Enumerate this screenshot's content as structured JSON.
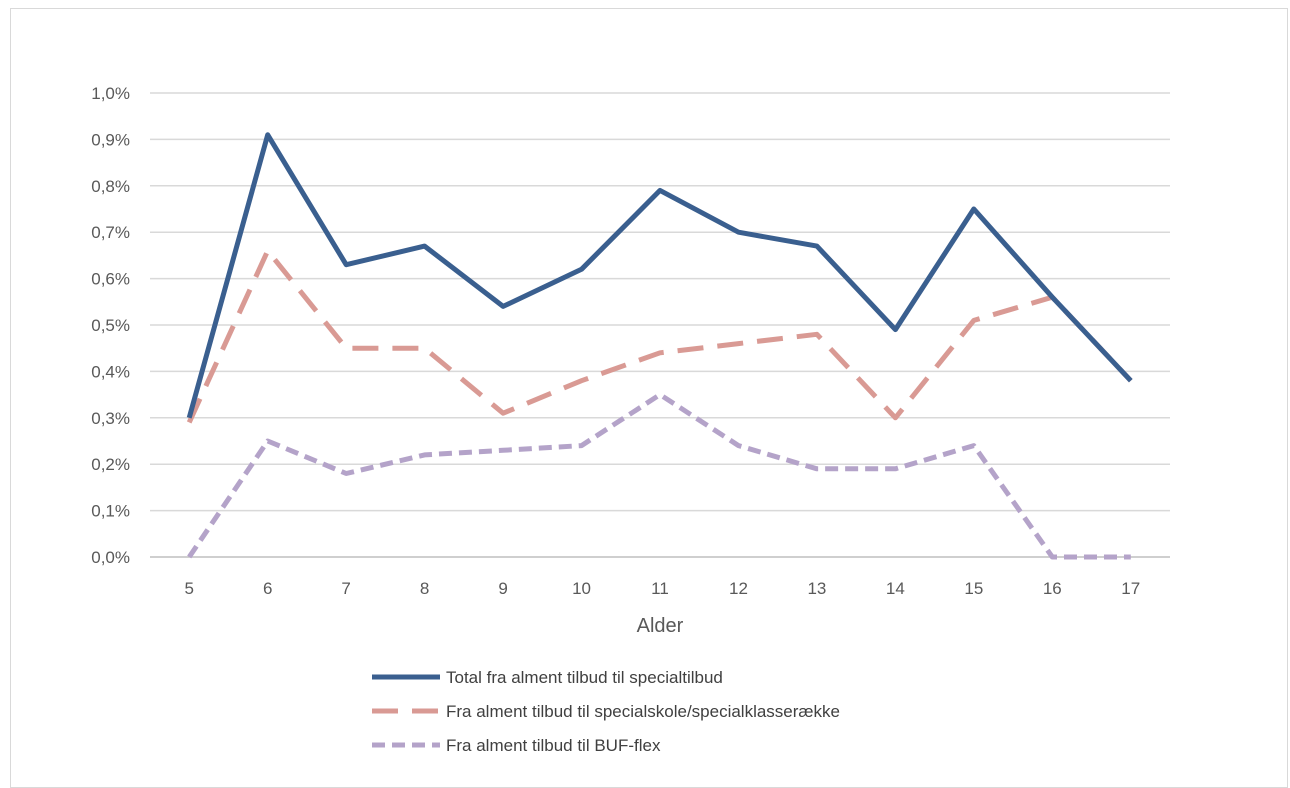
{
  "chart_data": {
    "type": "line",
    "title": "",
    "xlabel": "Alder",
    "ylabel": "",
    "categories": [
      "5",
      "6",
      "7",
      "8",
      "9",
      "10",
      "11",
      "12",
      "13",
      "14",
      "15",
      "16",
      "17"
    ],
    "ylim": [
      0,
      1.0
    ],
    "yticks": [
      "0,0%",
      "0,1%",
      "0,2%",
      "0,3%",
      "0,4%",
      "0,5%",
      "0,6%",
      "0,7%",
      "0,8%",
      "0,9%",
      "1,0%"
    ],
    "y_unit": "%",
    "grid": true,
    "legend_placement": "bottom",
    "series": [
      {
        "name": "Total fra alment tilbud til specialtilbud",
        "color": "#3a5f8f",
        "style": "solid",
        "values": [
          0.3,
          0.91,
          0.63,
          0.67,
          0.54,
          0.62,
          0.79,
          0.7,
          0.67,
          0.49,
          0.75,
          0.56,
          0.38
        ]
      },
      {
        "name": "Fra alment tilbud til specialskole/specialklasserække",
        "color": "#d99a94",
        "style": "long-dash",
        "values": [
          0.29,
          0.66,
          0.45,
          0.45,
          0.31,
          0.38,
          0.44,
          0.46,
          0.48,
          0.3,
          0.51,
          0.56,
          0.38
        ]
      },
      {
        "name": "Fra alment tilbud til BUF-flex",
        "color": "#b4a3c9",
        "style": "short-dash",
        "values": [
          0.0,
          0.25,
          0.18,
          0.22,
          0.23,
          0.24,
          0.35,
          0.24,
          0.19,
          0.19,
          0.24,
          0.0,
          0.0
        ]
      }
    ]
  }
}
